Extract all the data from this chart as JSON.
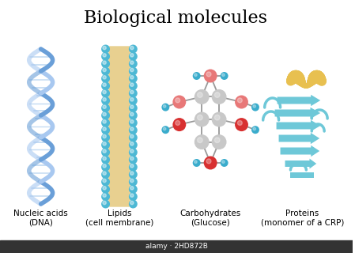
{
  "title": "Biological molecules",
  "title_fontsize": 16,
  "title_font": "serif",
  "bg_color": "#ffffff",
  "labels": [
    "Nucleic acids\n(DNA)",
    "Lipids\n(cell membrane)",
    "Carbohydrates\n(Glucose)",
    "Proteins\n(monomer of a CRP)"
  ],
  "label_fontsize": 7.5,
  "watermark": "alamy · 2HD872B",
  "watermark_bg": "#333333",
  "watermark_fg": "#ffffff",
  "dna_color1": "#6a9fd8",
  "dna_color2": "#a8c8f0",
  "dna_rung_color": "#b8d4f0",
  "lipid_head_color": "#4db8d4",
  "lipid_tail_color": "#e8d090",
  "glucose_carbon_color": "#c8c8c8",
  "glucose_oxygen_color": "#d83030",
  "glucose_oxygen2_color": "#e87878",
  "glucose_hydrogen_color": "#3aaccc",
  "glucose_bond_color": "#999999",
  "protein_sheet_color": "#6ec8d8",
  "protein_helix_color": "#e8c050",
  "protein_loop_color": "#6ec8d8"
}
